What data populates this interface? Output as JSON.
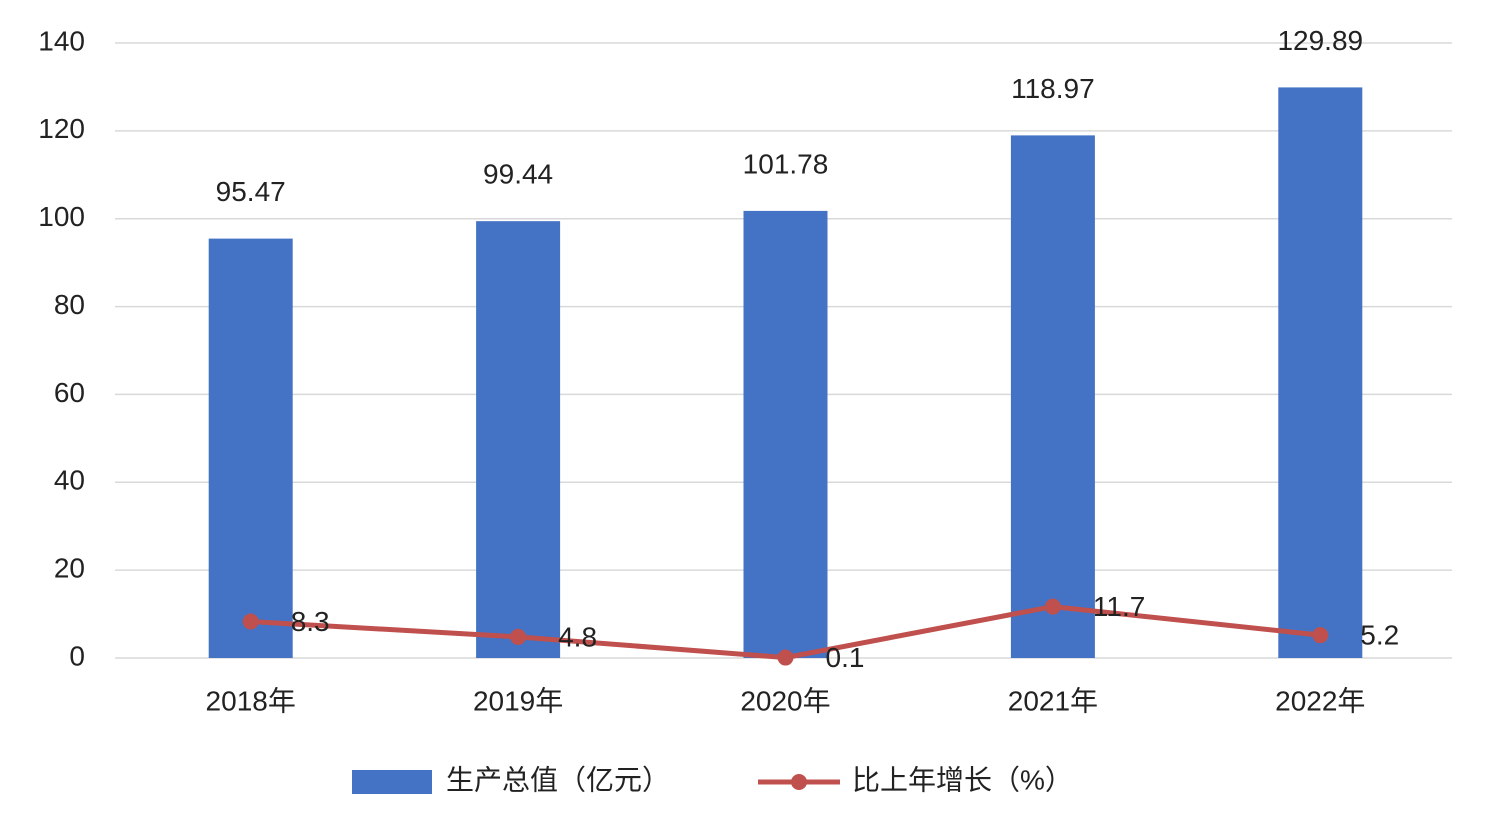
{
  "chart_data": {
    "type": "bar",
    "categories": [
      "2018年",
      "2019年",
      "2020年",
      "2021年",
      "2022年"
    ],
    "series": [
      {
        "name": "生产总值（亿元）",
        "type": "bar",
        "color": "#4472c4",
        "values": [
          95.47,
          99.44,
          101.78,
          118.97,
          129.89
        ]
      },
      {
        "name": "比上年增长（%）",
        "type": "line",
        "color": "#c0504d",
        "values": [
          8.3,
          4.8,
          0.1,
          11.7,
          5.2
        ]
      }
    ],
    "ylim": [
      0,
      140
    ],
    "yticks": [
      0,
      20,
      40,
      60,
      80,
      100,
      120,
      140
    ],
    "grid": true,
    "legend": "bottom"
  }
}
